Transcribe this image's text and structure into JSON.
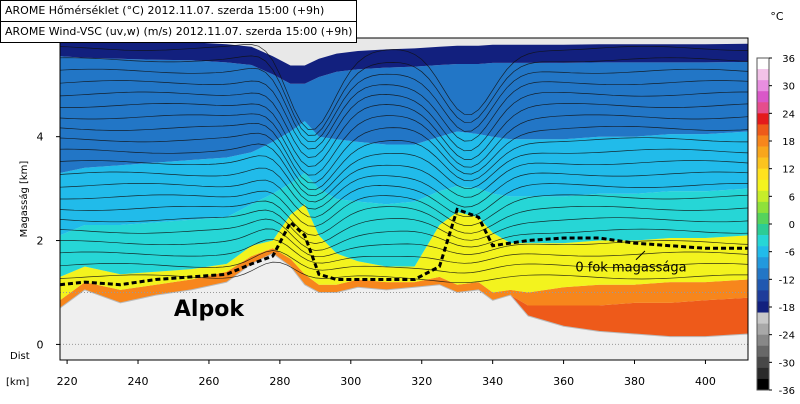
{
  "header": {
    "lines": [
      "AROME Hőmérséklet (°C) 2012.11.07. szerda 15:00 (+9h)",
      "AROME Wind-VSC (uv,w) (m/s) 2012.11.07. szerda 15:00 (+9h)"
    ]
  },
  "chart_data": {
    "type": "heatmap",
    "title": "",
    "xlabel": "[km]",
    "x_axis_prefix": "Dist",
    "ylabel": "Magasság [km]",
    "xlim": [
      218,
      412
    ],
    "ylim": [
      -0.3,
      5.9
    ],
    "xticks": [
      220,
      240,
      260,
      280,
      300,
      320,
      340,
      360,
      380,
      400
    ],
    "yticks": [
      0,
      2,
      4
    ],
    "colorbar": {
      "unit": "°C",
      "ticks": [
        36,
        30,
        24,
        18,
        12,
        6,
        0,
        -6,
        -12,
        -18,
        -24,
        -30,
        -36
      ],
      "colors": [
        "#ffffff",
        "#f2c2e8",
        "#e88ee0",
        "#d957c8",
        "#e64d8c",
        "#e41a1c",
        "#ee5a1a",
        "#f7861c",
        "#f8a61c",
        "#fbc41e",
        "#ffe21f",
        "#f3f31e",
        "#c6ed2a",
        "#8ee13a",
        "#55d35c",
        "#2ccc95",
        "#26d6d6",
        "#21bbea",
        "#2299dd",
        "#2276c6",
        "#2058b0",
        "#1e3c9a",
        "#12207e",
        "#c8c8c8",
        "#a8a8a8",
        "#888888",
        "#686868",
        "#484848",
        "#2a2a2a",
        "#000000"
      ]
    },
    "layers": {
      "x": [
        218,
        225,
        235,
        245,
        255,
        265,
        272,
        278,
        283,
        287,
        291,
        296,
        302,
        310,
        318,
        325,
        330,
        336,
        340,
        345,
        350,
        360,
        370,
        380,
        390,
        400,
        412
      ],
      "terrain": [
        0.7,
        1.05,
        0.8,
        0.95,
        1.05,
        1.2,
        1.55,
        1.75,
        1.5,
        1.15,
        1.0,
        1.0,
        1.1,
        1.05,
        1.1,
        1.15,
        1.0,
        1.05,
        0.85,
        0.95,
        0.55,
        0.35,
        0.25,
        0.2,
        0.15,
        0.15,
        0.2
      ],
      "t_above_6": [
        0.7,
        1.05,
        0.8,
        0.95,
        1.05,
        1.2,
        1.55,
        1.75,
        1.5,
        1.15,
        1.0,
        1.0,
        1.1,
        1.05,
        1.1,
        1.15,
        1.0,
        1.05,
        0.85,
        0.95,
        0.75,
        0.75,
        0.75,
        0.8,
        0.8,
        0.85,
        0.9
      ],
      "t_above_0": [
        0.85,
        1.2,
        1.05,
        1.15,
        1.25,
        1.4,
        1.7,
        1.85,
        1.65,
        1.35,
        1.15,
        1.15,
        1.25,
        1.2,
        1.2,
        1.3,
        1.15,
        1.2,
        1.0,
        1.05,
        1.0,
        1.1,
        1.15,
        1.15,
        1.2,
        1.2,
        1.25
      ],
      "t_above_m6": [
        1.3,
        1.5,
        1.35,
        1.4,
        1.45,
        1.55,
        1.9,
        2.0,
        2.5,
        2.7,
        2.1,
        1.75,
        1.6,
        1.5,
        1.5,
        2.3,
        2.55,
        2.45,
        2.15,
        1.95,
        1.95,
        1.95,
        2.0,
        2.0,
        2.05,
        2.05,
        2.1
      ],
      "t_above_m12": [
        2.1,
        2.3,
        2.3,
        2.35,
        2.4,
        2.45,
        2.7,
        2.9,
        3.1,
        3.3,
        3.0,
        2.8,
        2.75,
        2.7,
        2.75,
        2.95,
        3.05,
        3.0,
        2.9,
        2.85,
        2.85,
        2.85,
        2.9,
        2.9,
        2.95,
        2.95,
        3.0
      ],
      "t_above_m18": [
        3.3,
        3.4,
        3.45,
        3.5,
        3.55,
        3.6,
        3.7,
        3.9,
        4.1,
        4.3,
        4.0,
        3.95,
        3.9,
        3.85,
        3.85,
        4.0,
        4.1,
        4.05,
        4.0,
        3.95,
        3.95,
        3.95,
        4.0,
        4.0,
        4.05,
        4.05,
        4.1
      ],
      "t_above_m24": [
        5.55,
        5.52,
        5.5,
        5.48,
        5.47,
        5.43,
        5.38,
        5.2,
        5.02,
        5.02,
        5.15,
        5.25,
        5.3,
        5.33,
        5.35,
        5.38,
        5.4,
        5.4,
        5.42,
        5.42,
        5.42,
        5.42,
        5.43,
        5.43,
        5.43,
        5.43,
        5.44
      ],
      "freezing_level": [
        1.15,
        1.2,
        1.15,
        1.25,
        1.3,
        1.35,
        1.55,
        1.7,
        2.35,
        2.1,
        1.35,
        1.25,
        1.25,
        1.25,
        1.25,
        1.5,
        2.6,
        2.45,
        1.9,
        1.95,
        2.0,
        2.05,
        2.05,
        1.95,
        1.9,
        1.85,
        1.85
      ]
    },
    "annotations": [
      {
        "text": "Alpok",
        "x": 260,
        "y": 0.55
      },
      {
        "text": "0 fok magassága",
        "x": 379,
        "y": 1.4
      }
    ],
    "grid": false
  }
}
